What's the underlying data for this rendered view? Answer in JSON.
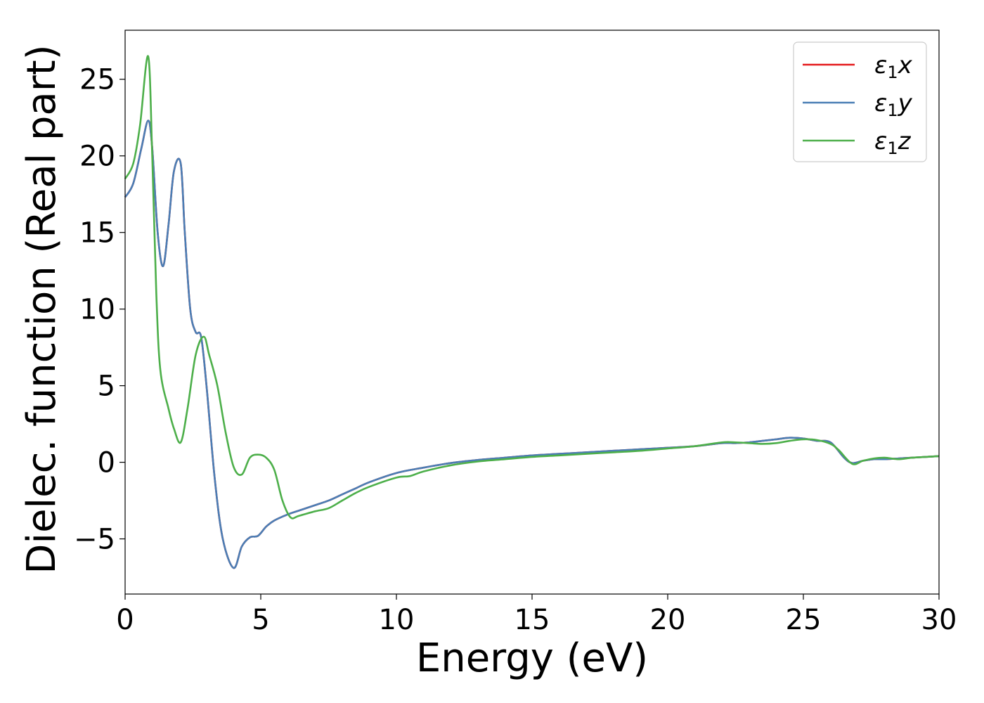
{
  "chart_data": {
    "type": "line",
    "title": "",
    "xlabel": "Energy (eV)",
    "ylabel": "Dielec. function (Real part)",
    "xlim": [
      0,
      30
    ],
    "ylim": [
      -8.6,
      28.2
    ],
    "xticks": [
      0,
      5,
      10,
      15,
      20,
      25,
      30
    ],
    "xtick_labels": [
      "0",
      "5",
      "10",
      "15",
      "20",
      "25",
      "30"
    ],
    "yticks": [
      -5,
      0,
      5,
      10,
      15,
      20,
      25
    ],
    "ytick_labels": [
      "−5",
      "0",
      "5",
      "10",
      "15",
      "20",
      "25"
    ],
    "grid": false,
    "legend_position": "top-right",
    "series": [
      {
        "name": "ε₁x",
        "legend_main": "ε",
        "legend_sub": "1",
        "legend_var": "x",
        "color": "#e41a1c",
        "x": [
          0,
          0.3,
          0.6,
          0.85,
          1.0,
          1.2,
          1.4,
          1.6,
          1.8,
          2.05,
          2.2,
          2.4,
          2.6,
          2.8,
          3.0,
          3.3,
          3.6,
          4.0,
          4.3,
          4.6,
          4.9,
          5.2,
          5.5,
          6.0,
          6.5,
          7.0,
          7.5,
          8.0,
          8.5,
          9.0,
          10.0,
          11.0,
          12.0,
          13.0,
          14.0,
          15.0,
          16.0,
          17.0,
          18.0,
          19.0,
          20.0,
          21.0,
          22.0,
          22.5,
          23.0,
          23.5,
          24.0,
          24.5,
          25.0,
          25.5,
          26.0,
          26.5,
          26.8,
          27.2,
          27.6,
          28.0,
          28.5,
          29.0,
          29.5,
          30.0
        ],
        "y": [
          17.3,
          18.2,
          20.5,
          22.3,
          20.5,
          15.0,
          12.8,
          15.5,
          19.0,
          19.5,
          15.0,
          10.0,
          8.5,
          8.2,
          5.0,
          -1.0,
          -5.0,
          -6.9,
          -5.5,
          -4.9,
          -4.8,
          -4.2,
          -3.8,
          -3.4,
          -3.1,
          -2.8,
          -2.5,
          -2.1,
          -1.7,
          -1.3,
          -0.7,
          -0.35,
          -0.05,
          0.15,
          0.3,
          0.45,
          0.55,
          0.65,
          0.75,
          0.85,
          0.95,
          1.05,
          1.25,
          1.25,
          1.3,
          1.4,
          1.5,
          1.6,
          1.55,
          1.4,
          1.3,
          0.3,
          -0.05,
          0.1,
          0.2,
          0.2,
          0.25,
          0.3,
          0.35,
          0.4
        ]
      },
      {
        "name": "ε₁y",
        "legend_main": "ε",
        "legend_sub": "1",
        "legend_var": "y",
        "color": "#4a7eb5",
        "x": [
          0,
          0.3,
          0.6,
          0.85,
          1.0,
          1.2,
          1.4,
          1.6,
          1.8,
          2.05,
          2.2,
          2.4,
          2.6,
          2.8,
          3.0,
          3.3,
          3.6,
          4.0,
          4.3,
          4.6,
          4.9,
          5.2,
          5.5,
          6.0,
          6.5,
          7.0,
          7.5,
          8.0,
          8.5,
          9.0,
          10.0,
          11.0,
          12.0,
          13.0,
          14.0,
          15.0,
          16.0,
          17.0,
          18.0,
          19.0,
          20.0,
          21.0,
          22.0,
          22.5,
          23.0,
          23.5,
          24.0,
          24.5,
          25.0,
          25.5,
          26.0,
          26.5,
          26.8,
          27.2,
          27.6,
          28.0,
          28.5,
          29.0,
          29.5,
          30.0
        ],
        "y": [
          17.3,
          18.2,
          20.5,
          22.3,
          20.5,
          15.0,
          12.8,
          15.5,
          19.0,
          19.5,
          15.0,
          10.0,
          8.5,
          8.2,
          5.0,
          -1.0,
          -5.0,
          -6.9,
          -5.5,
          -4.9,
          -4.8,
          -4.2,
          -3.8,
          -3.4,
          -3.1,
          -2.8,
          -2.5,
          -2.1,
          -1.7,
          -1.3,
          -0.7,
          -0.35,
          -0.05,
          0.15,
          0.3,
          0.45,
          0.55,
          0.65,
          0.75,
          0.85,
          0.95,
          1.05,
          1.25,
          1.25,
          1.3,
          1.4,
          1.5,
          1.6,
          1.55,
          1.4,
          1.3,
          0.3,
          -0.05,
          0.1,
          0.2,
          0.2,
          0.25,
          0.3,
          0.35,
          0.4
        ]
      },
      {
        "name": "ε₁z",
        "legend_main": "ε",
        "legend_sub": "1",
        "legend_var": "z",
        "color": "#4daf4a",
        "x": [
          0,
          0.3,
          0.55,
          0.85,
          1.0,
          1.15,
          1.3,
          1.6,
          1.8,
          2.05,
          2.3,
          2.6,
          2.9,
          3.1,
          3.4,
          3.7,
          4.0,
          4.3,
          4.6,
          4.9,
          5.2,
          5.5,
          5.8,
          6.1,
          6.4,
          7.0,
          7.5,
          8.0,
          8.5,
          9.0,
          10.0,
          10.5,
          11.0,
          12.0,
          13.0,
          14.0,
          15.0,
          16.0,
          17.0,
          18.0,
          19.0,
          20.0,
          21.0,
          22.0,
          22.5,
          23.0,
          23.5,
          24.0,
          24.5,
          25.0,
          25.5,
          26.0,
          26.3,
          26.8,
          27.2,
          27.6,
          28.0,
          28.5,
          29.0,
          29.5,
          30.0
        ],
        "y": [
          18.5,
          19.5,
          22.0,
          26.5,
          20.0,
          11.0,
          6.0,
          3.5,
          2.2,
          1.3,
          3.5,
          7.0,
          8.2,
          7.0,
          5.0,
          2.0,
          -0.3,
          -0.8,
          0.3,
          0.5,
          0.3,
          -0.5,
          -2.5,
          -3.6,
          -3.5,
          -3.2,
          -3.0,
          -2.5,
          -2.0,
          -1.6,
          -1.0,
          -0.9,
          -0.6,
          -0.2,
          0.05,
          0.2,
          0.35,
          0.45,
          0.55,
          0.65,
          0.75,
          0.9,
          1.05,
          1.3,
          1.3,
          1.25,
          1.2,
          1.25,
          1.4,
          1.5,
          1.45,
          1.2,
          0.8,
          -0.1,
          0.1,
          0.25,
          0.3,
          0.2,
          0.3,
          0.35,
          0.4
        ]
      }
    ]
  }
}
